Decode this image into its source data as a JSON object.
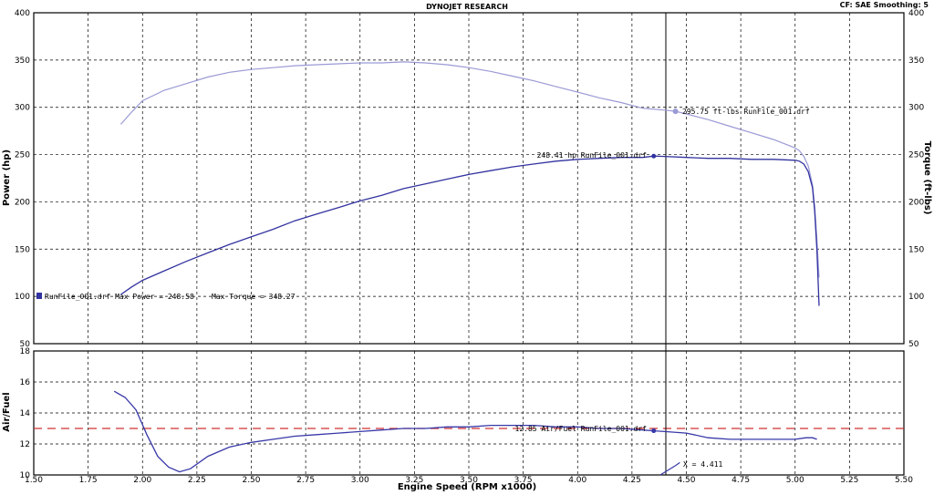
{
  "header": {
    "title": "DYNOJET RESEARCH",
    "settings": "CF: SAE  Smoothing: 5"
  },
  "colors": {
    "power": "#3232a0",
    "torque": "#9a9ad6",
    "afr": "#3838a8",
    "target_line": "#d03030",
    "grid": "#000000"
  },
  "chart_data": [
    {
      "type": "line",
      "name": "power-torque",
      "xlabel": "Engine Speed (RPM x1000)",
      "ylabel": "Power (hp)",
      "ylabel_right": "Torque (ft-lbs)",
      "xlim": [
        1.5,
        5.5
      ],
      "ylim": [
        50,
        400
      ],
      "x_ticks": [
        "1.50",
        "1.75",
        "2.00",
        "2.25",
        "2.50",
        "2.75",
        "3.00",
        "3.25",
        "3.50",
        "3.75",
        "4.00",
        "4.25",
        "4.50",
        "4.75",
        "5.00",
        "5.25",
        "5.50"
      ],
      "y_ticks": [
        "50",
        "100",
        "150",
        "200",
        "250",
        "300",
        "350",
        "400"
      ],
      "grid": true,
      "series": [
        {
          "name": "Power",
          "x": [
            1.9,
            1.95,
            2.0,
            2.1,
            2.2,
            2.3,
            2.4,
            2.5,
            2.6,
            2.7,
            2.8,
            2.9,
            3.0,
            3.1,
            3.2,
            3.3,
            3.4,
            3.5,
            3.6,
            3.7,
            3.8,
            3.9,
            4.0,
            4.1,
            4.2,
            4.3,
            4.35,
            4.4,
            4.5,
            4.6,
            4.7,
            4.8,
            4.9,
            5.0,
            5.02,
            5.04,
            5.06,
            5.08,
            5.09,
            5.1,
            5.11
          ],
          "y": [
            102,
            110,
            117,
            127,
            137,
            146,
            155,
            163,
            171,
            180,
            187,
            194,
            201,
            207,
            214,
            219,
            224,
            229,
            233,
            237,
            240,
            243,
            245,
            246,
            247,
            247,
            248.41,
            248,
            247,
            246,
            246,
            245,
            245,
            244,
            243,
            240,
            232,
            215,
            190,
            150,
            90
          ]
        },
        {
          "name": "Torque",
          "x": [
            1.9,
            1.95,
            2.0,
            2.1,
            2.2,
            2.3,
            2.4,
            2.5,
            2.6,
            2.7,
            2.8,
            2.9,
            3.0,
            3.1,
            3.2,
            3.3,
            3.4,
            3.5,
            3.6,
            3.7,
            3.8,
            3.9,
            4.0,
            4.1,
            4.2,
            4.3,
            4.4,
            4.45,
            4.5,
            4.6,
            4.7,
            4.8,
            4.9,
            5.0,
            5.02,
            5.04,
            5.06,
            5.08,
            5.09,
            5.1,
            5.11
          ],
          "y": [
            282,
            295,
            307,
            318,
            325,
            332,
            337,
            340,
            342,
            344,
            345,
            346,
            347,
            347,
            348,
            347,
            345,
            342,
            338,
            333,
            328,
            322,
            316,
            310,
            305,
            299,
            297,
            295.75,
            293,
            287,
            280,
            273,
            266,
            257,
            254,
            248,
            238,
            218,
            195,
            160,
            120
          ]
        }
      ],
      "annotations": {
        "torque_label": "295.75 ft-lbs RunFile_001.drf",
        "power_label": "248.41 hp RunFile_001.drf",
        "summary": "RunFile_001.drf Max Power = 248.58    Max Torque = 348.27"
      }
    },
    {
      "type": "line",
      "name": "air-fuel",
      "xlabel": "Engine Speed (RPM x1000)",
      "ylabel": "Air/Fuel",
      "xlim": [
        1.5,
        5.5
      ],
      "ylim": [
        10,
        18
      ],
      "y_ticks": [
        "10",
        "12",
        "14",
        "16",
        "18"
      ],
      "target_afr": 13,
      "grid": true,
      "series": [
        {
          "name": "Air/Fuel",
          "x": [
            1.87,
            1.92,
            1.97,
            2.02,
            2.07,
            2.12,
            2.17,
            2.22,
            2.3,
            2.4,
            2.5,
            2.6,
            2.7,
            2.8,
            2.9,
            3.0,
            3.1,
            3.2,
            3.3,
            3.4,
            3.5,
            3.6,
            3.7,
            3.8,
            3.9,
            4.0,
            4.1,
            4.2,
            4.3,
            4.35,
            4.4,
            4.5,
            4.6,
            4.7,
            4.8,
            4.9,
            5.0,
            5.05,
            5.08,
            5.1
          ],
          "y": [
            15.4,
            15.0,
            14.2,
            12.6,
            11.2,
            10.5,
            10.2,
            10.4,
            11.2,
            11.8,
            12.1,
            12.3,
            12.5,
            12.6,
            12.7,
            12.8,
            12.9,
            13.0,
            13.0,
            13.1,
            13.1,
            13.2,
            13.2,
            13.2,
            13.1,
            13.1,
            13.0,
            13.0,
            12.9,
            12.85,
            12.8,
            12.7,
            12.4,
            12.3,
            12.3,
            12.3,
            12.3,
            12.4,
            12.4,
            12.3
          ]
        }
      ],
      "annotations": {
        "afr_label": "12.85 Air/Fuel RunFile_001.drf",
        "cursor_label": "X = 4.411"
      }
    }
  ]
}
